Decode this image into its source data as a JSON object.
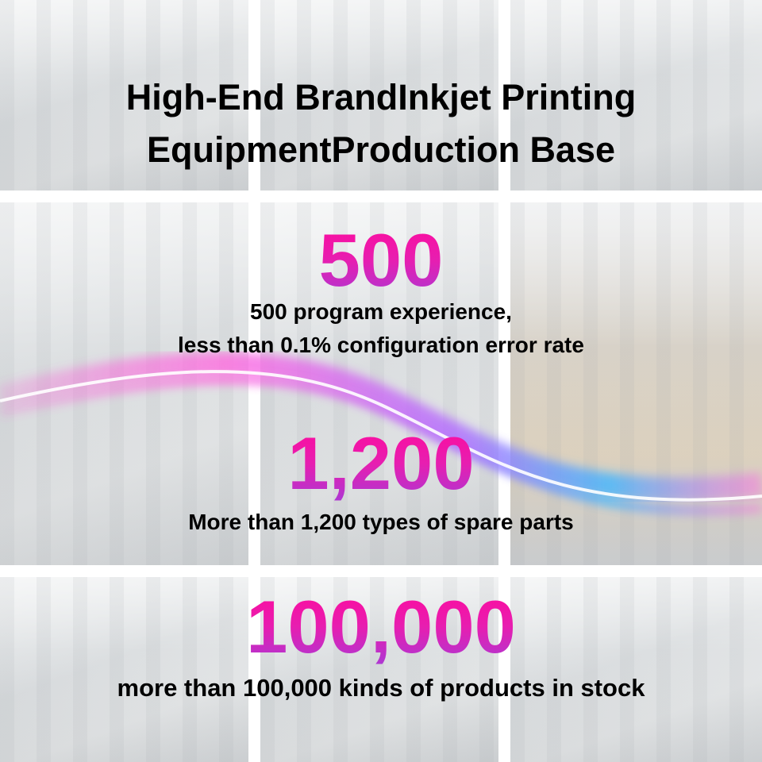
{
  "title": {
    "line1": "High-End BrandInkjet Printing",
    "line2": "EquipmentProduction Base"
  },
  "stats": [
    {
      "number": "500",
      "caption_line1": "500 program experience,",
      "caption_line2": "less than 0.1% configuration error rate"
    },
    {
      "number": "1,200",
      "caption_line1": "More than 1,200 types of spare parts"
    },
    {
      "number": "100,000",
      "caption_line1": "more than 100,000 kinds of products in stock"
    }
  ],
  "colors": {
    "number_gradient_top": "#ff0a9c",
    "number_gradient_bottom": "#a83ad6",
    "swoosh_pink": "#ff4fd8",
    "swoosh_blue": "#3fb6ff"
  }
}
